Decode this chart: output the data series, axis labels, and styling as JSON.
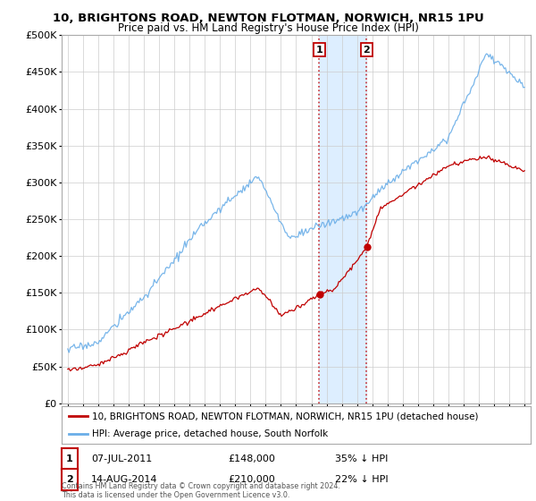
{
  "title": "10, BRIGHTONS ROAD, NEWTON FLOTMAN, NORWICH, NR15 1PU",
  "subtitle": "Price paid vs. HM Land Registry's House Price Index (HPI)",
  "footer": "Contains HM Land Registry data © Crown copyright and database right 2024.\nThis data is licensed under the Open Government Licence v3.0.",
  "legend_line1": "10, BRIGHTONS ROAD, NEWTON FLOTMAN, NORWICH, NR15 1PU (detached house)",
  "legend_line2": "HPI: Average price, detached house, South Norfolk",
  "sale1_date": "07-JUL-2011",
  "sale1_price": "£148,000",
  "sale1_note": "35% ↓ HPI",
  "sale2_date": "14-AUG-2014",
  "sale2_price": "£210,000",
  "sale2_note": "22% ↓ HPI",
  "sale1_year": 2011.52,
  "sale2_year": 2014.62,
  "sale1_price_val": 148000,
  "sale2_price_val": 210000,
  "hpi_color": "#6aaee8",
  "price_color": "#c00000",
  "highlight_color": "#ddeeff",
  "ylim_min": 0,
  "ylim_max": 500000,
  "xlim_min": 1994.6,
  "xlim_max": 2025.4,
  "background_color": "#ffffff",
  "grid_color": "#cccccc"
}
